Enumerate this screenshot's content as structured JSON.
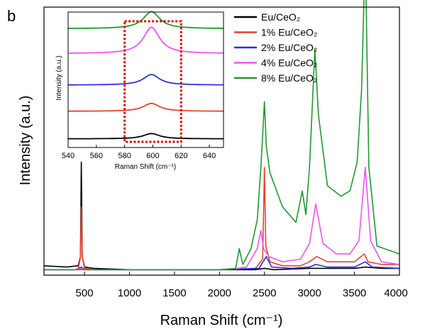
{
  "panel_label": "b",
  "chart_data": [
    {
      "type": "line",
      "role": "main",
      "xlabel": "Raman Shift (cm⁻¹)",
      "ylabel": "Intensity (a.u.)",
      "xlim": [
        50,
        4000
      ],
      "ylim": [
        0,
        100
      ],
      "x_ticks": [
        500,
        1000,
        1500,
        2000,
        2500,
        3000,
        3500,
        4000
      ],
      "y_ticks_labeled": false,
      "grid": false,
      "legend_position": "top-right",
      "series": [
        {
          "name": "Eu/CeO₂",
          "color": "#000000",
          "x": [
            50,
            300,
            430,
            455,
            465,
            475,
            500,
            600,
            1000,
            1500,
            2000,
            2400,
            2500,
            2600,
            3000,
            3100,
            3500,
            3620,
            3800,
            4000
          ],
          "y": [
            2.5,
            2,
            2.5,
            6,
            42,
            6,
            2,
            1.5,
            1,
            1,
            1,
            1,
            1.5,
            1,
            1.5,
            1.5,
            1.5,
            2,
            1.5,
            1.5
          ]
        },
        {
          "name": "1% Eu/CeO₂",
          "color": "#e8432a",
          "x": [
            50,
            430,
            455,
            465,
            475,
            500,
            600,
            1000,
            1500,
            2000,
            2400,
            2480,
            2500,
            2515,
            2560,
            2700,
            2900,
            3000,
            3080,
            3200,
            3500,
            3610,
            3650,
            3800,
            4000
          ],
          "y": [
            1,
            1,
            6,
            25,
            6,
            1.5,
            1,
            1,
            1,
            1,
            1.5,
            5,
            40,
            10,
            4,
            2.5,
            2.5,
            4,
            6,
            4,
            4,
            7,
            4,
            3,
            3
          ]
        },
        {
          "name": "2% Eu/CeO₂",
          "color": "#2c2fe0",
          "x": [
            50,
            400,
            465,
            500,
            1000,
            2000,
            2440,
            2520,
            2580,
            2800,
            3000,
            3070,
            3200,
            3500,
            3620,
            3700,
            4000
          ],
          "y": [
            1,
            1,
            2,
            1,
            1,
            1,
            1.5,
            6,
            2,
            1.5,
            2,
            3,
            2,
            2,
            4,
            2,
            1.5
          ]
        },
        {
          "name": "4% Eu/CeO₂",
          "color": "#ee55ee",
          "x": [
            50,
            400,
            465,
            500,
            1000,
            2000,
            2200,
            2300,
            2420,
            2460,
            2490,
            2550,
            2700,
            2900,
            3000,
            3070,
            3150,
            3300,
            3450,
            3550,
            3620,
            3680,
            3800,
            4000
          ],
          "y": [
            1,
            1,
            1.5,
            1,
            1,
            1,
            1.5,
            2,
            9,
            16,
            9,
            6,
            4,
            5,
            11,
            26,
            11,
            7,
            7,
            12,
            40,
            12,
            4,
            3
          ]
        },
        {
          "name": "8% Eu/CeO₂",
          "color": "#1f9a2e",
          "x": [
            50,
            400,
            500,
            1000,
            2000,
            2180,
            2220,
            2260,
            2350,
            2420,
            2460,
            2500,
            2520,
            2560,
            2700,
            2850,
            2920,
            2960,
            3000,
            3060,
            3100,
            3200,
            3350,
            3450,
            3530,
            3580,
            3620,
            3660,
            3750,
            4000
          ],
          "y": [
            1,
            1,
            1,
            1,
            1,
            1.5,
            9,
            3,
            9,
            20,
            40,
            65,
            48,
            38,
            25,
            19,
            31,
            22,
            40,
            85,
            60,
            33,
            29,
            31,
            42,
            70,
            123,
            40,
            10,
            7
          ]
        }
      ]
    },
    {
      "type": "line",
      "role": "inset",
      "xlabel": "Raman Shift (cm⁻¹)",
      "ylabel": "Intensity (a.u.)",
      "xlim": [
        540,
        650
      ],
      "ylim": [
        0,
        100
      ],
      "x_ticks": [
        540,
        560,
        580,
        600,
        620,
        640
      ],
      "highlight_range": [
        580,
        620
      ],
      "series": [
        {
          "color": "#000000",
          "baseline": 5,
          "peak_height": 4
        },
        {
          "color": "#e8432a",
          "baseline": 26,
          "peak_height": 6
        },
        {
          "color": "#2c2fe0",
          "baseline": 46,
          "peak_height": 8
        },
        {
          "color": "#ee55ee",
          "baseline": 70,
          "peak_height": 20
        },
        {
          "color": "#1f9a2e",
          "baseline": 89,
          "peak_height": 13
        }
      ]
    }
  ]
}
